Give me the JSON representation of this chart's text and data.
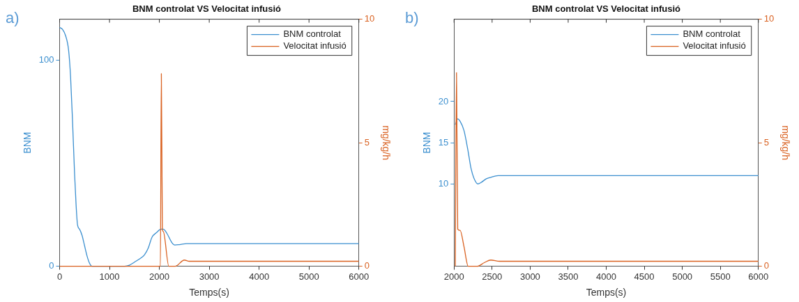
{
  "chart_data": [
    {
      "type": "line",
      "title": "BNM controlat VS Velocitat infusió",
      "xlabel": "Temps(s)",
      "ylabel": "BNM",
      "y2label": "mg/kg/h",
      "annotations": [
        "a)"
      ],
      "xlim": [
        0,
        6000
      ],
      "xticks": [
        0,
        1000,
        2000,
        3000,
        4000,
        5000,
        6000
      ],
      "ylim": [
        0,
        120
      ],
      "yticks": [
        0,
        100
      ],
      "y2lim": [
        0,
        10
      ],
      "y2ticks": [
        0,
        5,
        10
      ],
      "grid": false,
      "legend": "top right",
      "line_style": "solid",
      "marker": "none",
      "series": [
        {
          "name": "BNM controlat",
          "color": "#3b8fcf",
          "x": [
            0,
            60,
            120,
            180,
            220,
            260,
            300,
            330,
            360,
            400,
            450,
            500,
            550,
            600,
            650,
            1300,
            1400,
            1500,
            1600,
            1700,
            1780,
            1850,
            1950,
            2030,
            2080,
            2150,
            2250,
            2310,
            2400,
            2550,
            6000
          ],
          "values": [
            116,
            115,
            112,
            105,
            92,
            70,
            45,
            30,
            20,
            18,
            15,
            10,
            5,
            1.5,
            0,
            0,
            0.5,
            2,
            3.5,
            5.5,
            9,
            14,
            16.5,
            18,
            18,
            16,
            11.5,
            10.3,
            10.5,
            11,
            11
          ]
        },
        {
          "name": "Velocitat infusió",
          "color": "#d9601f",
          "axis": "y2",
          "x": [
            0,
            2020,
            2040,
            2060,
            2080,
            2190,
            2320,
            2500,
            2600,
            6000
          ],
          "values": [
            0,
            0,
            7.8,
            1.5,
            1.4,
            0,
            0,
            0.25,
            0.2,
            0.2
          ]
        }
      ]
    },
    {
      "type": "line",
      "title": "BNM controlat VS Velocitat infusió",
      "xlabel": "Temps(s)",
      "ylabel": "BNM",
      "y2label": "mg/kg/h",
      "annotations": [
        "b)"
      ],
      "xlim": [
        2000,
        6000
      ],
      "xticks": [
        2000,
        2500,
        3000,
        3500,
        4000,
        4500,
        5000,
        5500,
        6000
      ],
      "ylim": [
        0,
        30
      ],
      "yticks": [
        10,
        15,
        20
      ],
      "y2lim": [
        0,
        10
      ],
      "y2ticks": [
        0,
        5,
        10
      ],
      "grid": false,
      "legend": "top right",
      "line_style": "solid",
      "marker": "none",
      "series": [
        {
          "name": "BNM controlat",
          "color": "#3b8fcf",
          "x": [
            2016,
            2048,
            2080,
            2130,
            2180,
            2225,
            2270,
            2312,
            2360,
            2420,
            2482,
            2579,
            2700,
            6000
          ],
          "values": [
            17.2,
            17.9,
            17.6,
            16.5,
            14.2,
            11.8,
            10.5,
            10.0,
            10.2,
            10.6,
            10.8,
            11.0,
            11.0,
            11.0
          ]
        },
        {
          "name": "Velocitat infusió",
          "color": "#d9601f",
          "axis": "y2",
          "x": [
            2016,
            2032,
            2048,
            2080,
            2130,
            2186,
            2305,
            2400,
            2482,
            2600,
            6000
          ],
          "values": [
            0,
            7.84,
            1.5,
            1.45,
            0.8,
            0,
            0,
            0.15,
            0.25,
            0.2,
            0.2
          ]
        }
      ]
    }
  ]
}
